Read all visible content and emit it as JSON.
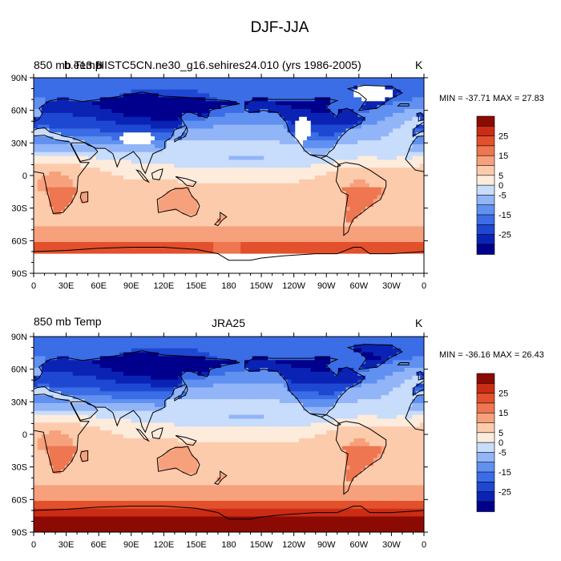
{
  "figure_title": "DJF-JJA",
  "colorbar": {
    "levels": [
      -30,
      -25,
      -20,
      -15,
      -10,
      -5,
      0,
      5,
      10,
      15,
      20,
      25,
      30
    ],
    "tick_labels": [
      "25",
      "15",
      "5",
      "0",
      "-5",
      "-15",
      "-25"
    ],
    "colors": [
      "#00008c",
      "#0a23b4",
      "#1e48d2",
      "#3a6de6",
      "#6090f0",
      "#92b5f8",
      "#c8dcfb",
      "#fdebdc",
      "#fccbac",
      "#f7a07c",
      "#ee7650",
      "#e2502c",
      "#cb2c14",
      "#8c0a04"
    ]
  },
  "chart_data": [
    {
      "type": "heatmap",
      "panel_label": "850 mb Temp",
      "overlap_label": "b.e13.B",
      "title": "HISTC5CN.ne30_g16.sehires24.010 (yrs 1986-2005)",
      "units": "K",
      "stats": "MIN = -37.71 MAX =  27.83",
      "min": -37.71,
      "max": 27.83,
      "x_ticks": [
        "0",
        "30E",
        "60E",
        "90E",
        "120E",
        "150E",
        "180",
        "150W",
        "120W",
        "90W",
        "60W",
        "30W",
        "0"
      ],
      "y_ticks": [
        "90N",
        "60N",
        "30N",
        "0",
        "30S",
        "60S",
        "90S"
      ],
      "xlim": [
        0,
        360
      ],
      "ylim": [
        -90,
        90
      ],
      "masked_high_terrain": true
    },
    {
      "type": "heatmap",
      "panel_label": "850 mb Temp",
      "title": "JRA25",
      "units": "K",
      "stats": "MIN = -36.16 MAX =  26.43",
      "min": -36.16,
      "max": 26.43,
      "x_ticks": [
        "0",
        "30E",
        "60E",
        "90E",
        "120E",
        "150E",
        "180",
        "150W",
        "120W",
        "90W",
        "60W",
        "30W",
        "0"
      ],
      "y_ticks": [
        "90N",
        "60N",
        "30N",
        "0",
        "30S",
        "60S",
        "90S"
      ],
      "xlim": [
        0,
        360
      ],
      "ylim": [
        -90,
        90
      ],
      "masked_high_terrain": false
    }
  ]
}
